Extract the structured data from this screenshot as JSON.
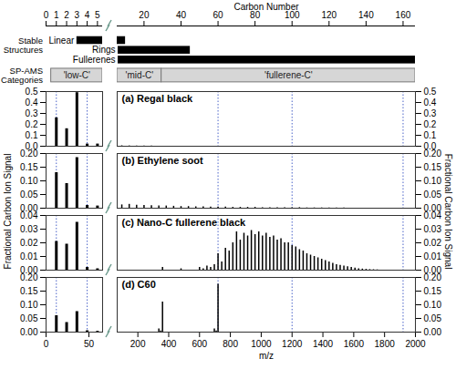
{
  "chart_data": {
    "type": "bar",
    "color": "#000000",
    "x_label": "m/z",
    "y_label": "Fractional Carbon Ion Signal",
    "x2_label": "Carbon Number",
    "x_segments": [
      {
        "xlim": [
          0,
          66
        ],
        "xticks": [
          0,
          50
        ],
        "x2lim": [
          0,
          5.5
        ],
        "x2ticks": [
          0,
          1,
          2,
          3,
          4,
          5
        ],
        "reference_lines": [
          12,
          48
        ]
      },
      {
        "xlim": [
          66,
          2000
        ],
        "xticks": [
          200,
          400,
          600,
          800,
          1000,
          1200,
          1400,
          1600,
          1800,
          2000
        ],
        "x2lim": [
          5.5,
          166.67
        ],
        "x2ticks": [
          20,
          40,
          60,
          80,
          100,
          120,
          140,
          160
        ],
        "reference_lines": [
          720,
          1200,
          1920
        ]
      }
    ],
    "stable_structures": {
      "label": "Stable Structures",
      "items": [
        {
          "name": "Linear",
          "range": [
            3,
            10
          ]
        },
        {
          "name": "Rings",
          "range": [
            6,
            45
          ]
        },
        {
          "name": "Fullerenes",
          "range": [
            6,
            166.67
          ]
        }
      ]
    },
    "categories": {
      "label": "SP-AMS Categories",
      "items": [
        {
          "name": "'low-C'",
          "range": [
            0.5,
            5.5
          ]
        },
        {
          "name": "'mid-C'",
          "range": [
            5.5,
            29.5
          ]
        },
        {
          "name": "'fullerene-C'",
          "range": [
            29.5,
            166.67
          ]
        }
      ]
    },
    "panels": [
      {
        "title": "(a) Regal black",
        "ylim": [
          0,
          0.5
        ],
        "yticks": [
          {
            "value": 0,
            "label": "0.0"
          },
          0.1,
          0.2,
          0.3,
          0.4,
          0.5
        ],
        "segments": [
          {
            "x": [
              12,
              24,
              36,
              48,
              60
            ],
            "values": [
              0.26,
              0.16,
              0.49,
              0.02,
              0.02
            ]
          },
          {
            "x": [
              96,
              144,
              192,
              240,
              288
            ],
            "values": [
              0.004,
              0.003,
              0.003,
              0.002,
              0.002
            ]
          }
        ]
      },
      {
        "title": "(b) Ethylene soot",
        "ylim": [
          0,
          0.2
        ],
        "yticks": [
          {
            "value": 0,
            "label": "0.00"
          },
          0.05,
          {
            "value": 0.1,
            "label": "0.10"
          },
          0.15,
          {
            "value": 0.2,
            "label": "0.20"
          }
        ],
        "segments": [
          {
            "x": [
              12,
              24,
              36,
              48,
              60
            ],
            "values": [
              0.13,
              0.09,
              0.185,
              0.01,
              0.008
            ]
          },
          {
            "x": [
              96,
              144,
              192,
              240,
              288,
              336,
              384,
              432,
              480,
              528,
              576,
              624,
              672,
              720,
              768,
              816,
              864,
              912,
              960,
              1008,
              1056,
              1104,
              1152,
              1200,
              1248,
              1296,
              1344,
              1392,
              1440,
              1488,
              1536
            ],
            "values": [
              0.012,
              0.014,
              0.011,
              0.01,
              0.009,
              0.008,
              0.008,
              0.007,
              0.006,
              0.006,
              0.005,
              0.005,
              0.004,
              0.004,
              0.004,
              0.003,
              0.003,
              0.003,
              0.003,
              0.002,
              0.002,
              0.002,
              0.002,
              0.002,
              0.002,
              0.001,
              0.001,
              0.001,
              0.001,
              0.001,
              0.001
            ]
          }
        ]
      },
      {
        "title": "(c) Nano-C fullerene black",
        "ylim": [
          0,
          0.04
        ],
        "yticks": [
          {
            "value": 0,
            "label": "0.00"
          },
          0.01,
          0.02,
          0.03,
          0.04
        ],
        "segments": [
          {
            "x": [
              12,
              24,
              36,
              48,
              60
            ],
            "values": [
              0.021,
              0.019,
              0.035,
              0.002,
              0.001
            ]
          },
          {
            "x": [
              360,
              480,
              600,
              624,
              648,
              672,
              696,
              720,
              744,
              768,
              792,
              816,
              840,
              864,
              888,
              912,
              936,
              960,
              984,
              1008,
              1032,
              1056,
              1080,
              1104,
              1128,
              1152,
              1176,
              1200,
              1224,
              1248,
              1272,
              1296,
              1320,
              1344,
              1368,
              1392,
              1416,
              1440,
              1464,
              1488,
              1512,
              1536,
              1560,
              1584,
              1608,
              1632,
              1656,
              1680,
              1704,
              1728,
              1752
            ],
            "values": [
              0.002,
              0.001,
              0.002,
              0.001,
              0.003,
              0.002,
              0.004,
              0.012,
              0.006,
              0.016,
              0.014,
              0.02,
              0.028,
              0.022,
              0.027,
              0.025,
              0.029,
              0.026,
              0.028,
              0.025,
              0.027,
              0.024,
              0.025,
              0.022,
              0.023,
              0.02,
              0.02,
              0.018,
              0.017,
              0.015,
              0.014,
              0.012,
              0.011,
              0.01,
              0.009,
              0.008,
              0.007,
              0.006,
              0.005,
              0.004,
              0.0035,
              0.003,
              0.0025,
              0.002,
              0.0015,
              0.001,
              0.0008,
              0.0006,
              0.0004,
              0.0003,
              0.0002
            ]
          }
        ]
      },
      {
        "title": "(d) C60",
        "ylim": [
          0,
          0.2
        ],
        "yticks": [
          {
            "value": 0,
            "label": "0.00"
          },
          0.05,
          {
            "value": 0.1,
            "label": "0.10"
          },
          0.15,
          {
            "value": 0.2,
            "label": "0.20"
          }
        ],
        "segments": [
          {
            "x": [
              12,
              24,
              36,
              48,
              60
            ],
            "values": [
              0.06,
              0.035,
              0.075,
              0.005,
              0.003
            ]
          },
          {
            "x": [
              336,
              348,
              360,
              696,
              708,
              720
            ],
            "values": [
              0.012,
              0.004,
              0.11,
              0.012,
              0.004,
              0.175
            ]
          }
        ]
      }
    ]
  }
}
